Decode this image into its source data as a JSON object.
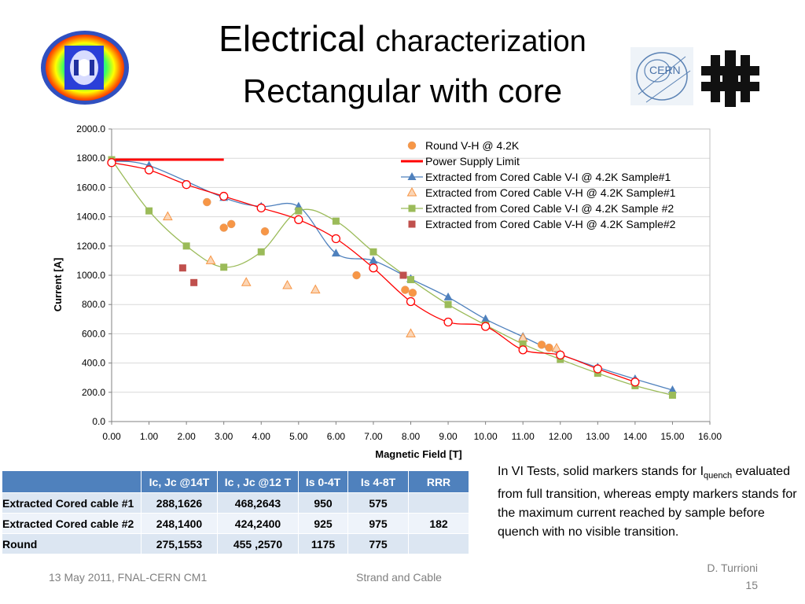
{
  "title": {
    "line1_a": "Electrical",
    "line1_b": "characterization",
    "line2": "Rectangular with core"
  },
  "logos": {
    "cern_text": "CERN"
  },
  "chart_data": {
    "type": "scatter",
    "xlabel": "Magnetic Field [T]",
    "ylabel": "Current [A]",
    "xlim": [
      0,
      16
    ],
    "ylim": [
      0,
      2000
    ],
    "xticks": [
      "0.00",
      "1.00",
      "2.00",
      "3.00",
      "4.00",
      "5.00",
      "6.00",
      "7.00",
      "8.00",
      "9.00",
      "10.00",
      "11.00",
      "12.00",
      "13.00",
      "14.00",
      "15.00",
      "16.00"
    ],
    "yticks": [
      "0.0",
      "200.0",
      "400.0",
      "600.0",
      "800.0",
      "1000.0",
      "1200.0",
      "1400.0",
      "1600.0",
      "1800.0",
      "2000.0"
    ],
    "grid": "horizontal",
    "legend_position": "top-right",
    "series": [
      {
        "name": "Round V-H @ 4.2K",
        "color": "#f79646",
        "marker": "circle-filled",
        "points": [
          [
            2.55,
            1500
          ],
          [
            3.0,
            1325
          ],
          [
            3.2,
            1350
          ],
          [
            4.1,
            1300
          ],
          [
            6.55,
            1000
          ],
          [
            7.85,
            900
          ],
          [
            8.05,
            880
          ],
          [
            11.5,
            525
          ],
          [
            11.7,
            505
          ]
        ]
      },
      {
        "name": "Power Supply Limit",
        "color": "#ff0000",
        "marker": "line",
        "points": [
          [
            0,
            1790
          ],
          [
            3.0,
            1790
          ]
        ]
      },
      {
        "name": "Extracted from Cored Cable V-I @ 4.2K Sample#1",
        "color": "#4f81bd",
        "marker": "triangle-filled",
        "points": [
          [
            0,
            1780
          ],
          [
            1.0,
            1750
          ],
          [
            3.0,
            1530
          ],
          [
            4.0,
            1470
          ],
          [
            5.0,
            1470
          ],
          [
            6.0,
            1150
          ],
          [
            7.0,
            1100
          ],
          [
            8.0,
            975
          ],
          [
            9.0,
            850
          ],
          [
            10.0,
            700
          ],
          [
            11.0,
            580
          ],
          [
            12.0,
            460
          ],
          [
            13.0,
            370
          ],
          [
            14.0,
            290
          ],
          [
            15.0,
            215
          ]
        ]
      },
      {
        "name": "Extracted from Cored Cable V-H @ 4.2K Sample#1",
        "color": "#f79646",
        "marker": "triangle-open",
        "points": [
          [
            1.5,
            1400
          ],
          [
            2.65,
            1100
          ],
          [
            3.6,
            950
          ],
          [
            4.7,
            930
          ],
          [
            5.45,
            900
          ],
          [
            8.0,
            600
          ],
          [
            11.0,
            570
          ],
          [
            11.9,
            500
          ]
        ]
      },
      {
        "name": "Extracted from Cored Cable V-I @ 4.2K Sample #2",
        "color": "#9bbb59",
        "marker": "square-filled",
        "points": [
          [
            0,
            1790
          ],
          [
            1.0,
            1440
          ],
          [
            2.0,
            1200
          ],
          [
            3.0,
            1055
          ],
          [
            4.0,
            1160
          ],
          [
            5.0,
            1440
          ],
          [
            6.0,
            1370
          ],
          [
            7.0,
            1160
          ],
          [
            8.0,
            970
          ],
          [
            9.0,
            800
          ],
          [
            10.0,
            660
          ],
          [
            11.0,
            530
          ],
          [
            12.0,
            425
          ],
          [
            13.0,
            330
          ],
          [
            14.0,
            245
          ],
          [
            15.0,
            180
          ]
        ]
      },
      {
        "name": "Extracted from Cored Cable V-H @ 4.2K Sample#2",
        "color": "#c0504d",
        "marker": "square-filled",
        "points": [
          [
            1.9,
            1050
          ],
          [
            2.2,
            950
          ],
          [
            7.8,
            1000
          ]
        ]
      },
      {
        "name": "",
        "color": "#ff0000",
        "marker": "circle-open-red",
        "points": [
          [
            0,
            1770
          ],
          [
            1.0,
            1720
          ],
          [
            2.0,
            1620
          ],
          [
            3.0,
            1540
          ],
          [
            4.0,
            1460
          ],
          [
            5.0,
            1380
          ],
          [
            6.0,
            1250
          ],
          [
            7.0,
            1050
          ],
          [
            8.0,
            820
          ],
          [
            9.0,
            680
          ],
          [
            10.0,
            650
          ],
          [
            11.0,
            490
          ],
          [
            12.0,
            455
          ],
          [
            13.0,
            360
          ],
          [
            14.0,
            270
          ]
        ]
      }
    ]
  },
  "table": {
    "headers": [
      "",
      "Ic, Jc @14T",
      "Ic , Jc @12 T",
      "Is 0-4T",
      "Is 4-8T",
      "RRR"
    ],
    "rows": [
      [
        "Extracted Cored cable #1",
        "288,1626",
        "468,2643",
        "950",
        "575",
        ""
      ],
      [
        "Extracted Cored cable #2",
        "248,1400",
        "424,2400",
        "925",
        "975",
        "182"
      ],
      [
        "Round",
        "275,1553",
        "455 ,2570",
        "1175",
        "775",
        ""
      ]
    ]
  },
  "note": {
    "before": "In VI Tests, solid markers stands for I",
    "subscript": "quench",
    "after": " evaluated from full transition, whereas empty markers stands for the maximum current reached by sample before quench with no visible transition."
  },
  "footer": {
    "left": "13 May 2011, FNAL-CERN CM1",
    "middle": "Strand and Cable",
    "author": "D. Turrioni",
    "page": "15"
  }
}
